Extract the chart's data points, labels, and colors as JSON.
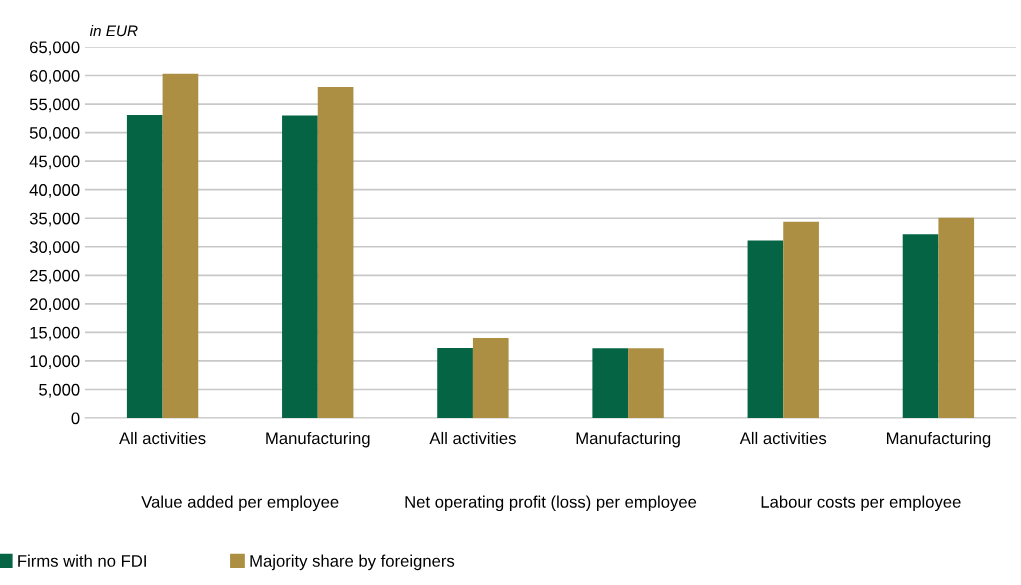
{
  "chart_data": {
    "type": "bar",
    "ylabel": "in EUR",
    "categories": [
      "All activities",
      "Manufacturing",
      "All activities",
      "Manufacturing",
      "All activities",
      "Manufacturing"
    ],
    "series": [
      {
        "name": "Firms with no FDI",
        "color": "#046444",
        "values": [
          53100,
          53000,
          12250,
          12200,
          31100,
          32200
        ]
      },
      {
        "name": "Majority share by foreigners",
        "color": "#ac8f43",
        "values": [
          60300,
          58000,
          14000,
          12200,
          34400,
          35100
        ]
      }
    ],
    "annotations": [
      "Value added per employee",
      "Net operating profit (loss) per employee",
      "Labour costs per employee"
    ],
    "ylim": [
      0,
      65000
    ],
    "yticks": [
      {
        "value": 0,
        "label": "0"
      },
      {
        "value": 5000,
        "label": "5,000"
      },
      {
        "value": 10000,
        "label": "10,000"
      },
      {
        "value": 15000,
        "label": "15,000"
      },
      {
        "value": 20000,
        "label": "20,000"
      },
      {
        "value": 25000,
        "label": "25,000"
      },
      {
        "value": 30000,
        "label": "30,000"
      },
      {
        "value": 35000,
        "label": "35,000"
      },
      {
        "value": 40000,
        "label": "40,000"
      },
      {
        "value": 45000,
        "label": "45,000"
      },
      {
        "value": 50000,
        "label": "50,000"
      },
      {
        "value": 55000,
        "label": "55,000"
      },
      {
        "value": 60000,
        "label": "60,000"
      },
      {
        "value": 65000,
        "label": "65,000"
      }
    ],
    "grid": "y",
    "legend": "bottom left"
  }
}
